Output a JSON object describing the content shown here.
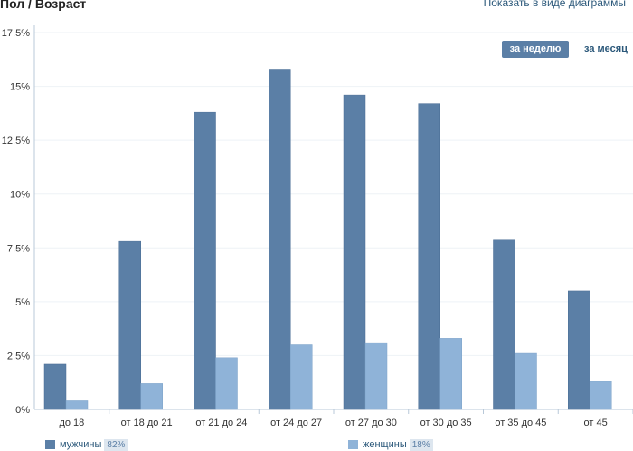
{
  "header": {
    "title": "Пол / Возраст",
    "show_chart_link": "Показать в виде диаграммы"
  },
  "period": {
    "week_label": "за неделю",
    "month_label": "за месяц"
  },
  "colors": {
    "male": "#5b7fa6",
    "female": "#8fb3d8",
    "axis": "#b8c8d8",
    "grid": "#eef2f6"
  },
  "legend": [
    {
      "label": "мужчины",
      "percent": "82%"
    },
    {
      "label": "женщины",
      "percent": "18%"
    }
  ],
  "chart_data": {
    "type": "bar",
    "categories": [
      "до 18",
      "от 18 до 21",
      "от 21 до 24",
      "от 24 до 27",
      "от 27 до 30",
      "от 30 до 35",
      "от 35 до 45",
      "от 45"
    ],
    "series": [
      {
        "name": "мужчины",
        "values": [
          2.1,
          7.8,
          13.8,
          15.8,
          14.6,
          14.2,
          7.9,
          5.5
        ]
      },
      {
        "name": "женщины",
        "values": [
          0.4,
          1.2,
          2.4,
          3.0,
          3.1,
          3.3,
          2.6,
          1.3
        ]
      }
    ],
    "yticks": [
      "0%",
      "2.5%",
      "5%",
      "7.5%",
      "10%",
      "12.5%",
      "15%",
      "17.5%"
    ],
    "ylim": [
      0,
      17.5
    ],
    "grid": true,
    "legend_position": "bottom"
  }
}
